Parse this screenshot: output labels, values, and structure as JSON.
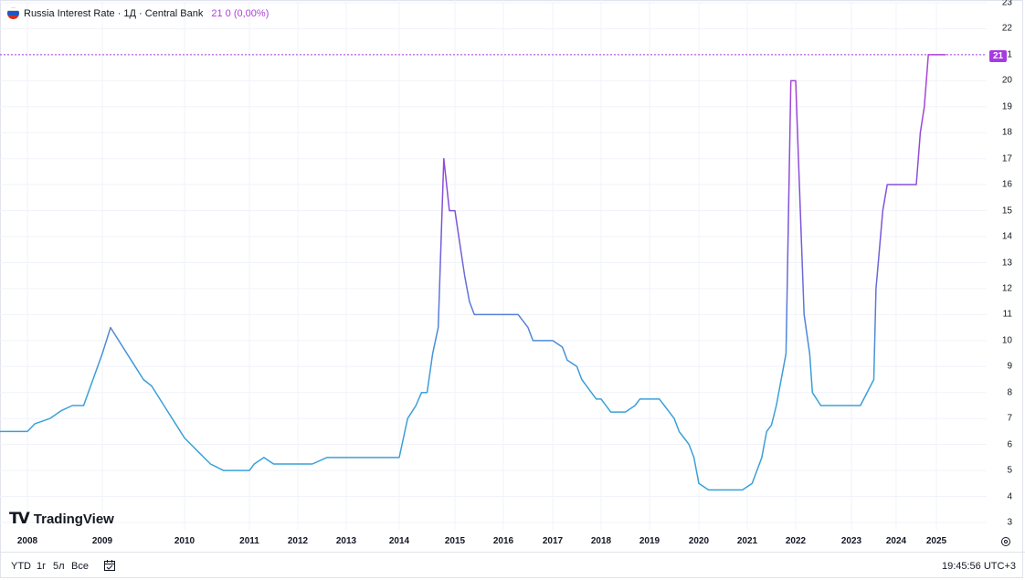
{
  "legend": {
    "title": "Russia Interest Rate · 1Д · Central Bank",
    "value": "21 0 (0,00%)"
  },
  "price_label": "21",
  "logo": {
    "mark": "TV",
    "text": "TradingView"
  },
  "bottom_bar": {
    "ranges": [
      "YTD",
      "1г",
      "5л",
      "Все"
    ],
    "clock": "19:45:56 UTC+3"
  },
  "colors": {
    "line_blue": "#3aa0d8",
    "line_purple": "#b03fd9",
    "grid": "#f0f3fa",
    "price_line": "#a53ce0"
  },
  "chart_data": {
    "type": "line",
    "title": "Russia Interest Rate",
    "ylim": [
      3,
      23
    ],
    "y_ticks": [
      3,
      4,
      5,
      6,
      7,
      8,
      9,
      10,
      11,
      12,
      13,
      14,
      15,
      16,
      17,
      18,
      19,
      20,
      21,
      22,
      23
    ],
    "x_ticks": [
      "2008",
      "2009",
      "2010",
      "2011",
      "2012",
      "2013",
      "2014",
      "2015",
      "2016",
      "2017",
      "2018",
      "2019",
      "2020",
      "2021",
      "2022",
      "2023",
      "2024",
      "2025"
    ],
    "series": [
      {
        "x": [
          2007.4,
          2008.0,
          2008.1,
          2008.3,
          2008.45,
          2008.6,
          2008.75,
          2009.0,
          2009.1,
          2009.2,
          2009.3,
          2009.4,
          2009.5,
          2009.6,
          2009.7,
          2009.8,
          2009.9,
          2010.0,
          2010.1,
          2010.2,
          2010.3,
          2010.4,
          2010.6,
          2010.9,
          2011.0,
          2011.1,
          2011.3,
          2011.5,
          2011.7,
          2011.9,
          2012.0,
          2012.3,
          2012.6,
          2012.8,
          2013.0,
          2013.5,
          2014.0,
          2014.15,
          2014.3,
          2014.4,
          2014.5,
          2014.6,
          2014.7,
          2014.8,
          2014.9,
          2014.97,
          2015.0,
          2015.08,
          2015.2,
          2015.3,
          2015.4,
          2015.45,
          2015.5,
          2016.0,
          2016.3,
          2016.5,
          2016.6,
          2017.0,
          2017.2,
          2017.3,
          2017.5,
          2017.6,
          2017.7,
          2017.8,
          2017.9,
          2018.0,
          2018.2,
          2018.5,
          2018.7,
          2018.8,
          2018.95,
          2019.2,
          2019.3,
          2019.4,
          2019.5,
          2019.6,
          2019.7,
          2019.8,
          2019.9,
          2020.0,
          2020.2,
          2020.3,
          2020.45,
          2020.55,
          2020.9,
          2021.1,
          2021.2,
          2021.3,
          2021.4,
          2021.5,
          2021.6,
          2021.7,
          2021.8,
          2021.9,
          2022.0,
          2022.05,
          2022.1,
          2022.15,
          2022.25,
          2022.3,
          2022.45,
          2022.6,
          2022.7,
          2022.8,
          2023.0,
          2023.2,
          2023.5,
          2023.55,
          2023.6,
          2023.7,
          2023.8,
          2023.9,
          2024.0,
          2024.5,
          2024.6,
          2024.7,
          2024.8,
          2025.0,
          2025.2
        ],
        "y": [
          6.5,
          6.5,
          6.8,
          7.0,
          7.3,
          7.5,
          7.5,
          9.5,
          10.5,
          10.0,
          9.5,
          9.0,
          8.5,
          8.25,
          7.75,
          7.25,
          6.75,
          6.25,
          6.0,
          5.75,
          5.5,
          5.25,
          5.0,
          5.0,
          5.0,
          5.25,
          5.5,
          5.25,
          5.25,
          5.25,
          5.25,
          5.25,
          5.5,
          5.5,
          5.5,
          5.5,
          5.5,
          7.0,
          7.5,
          8.0,
          8.0,
          9.5,
          10.5,
          17.0,
          15.0,
          15.0,
          15.0,
          14.0,
          12.5,
          11.5,
          11.0,
          11.0,
          11.0,
          11.0,
          11.0,
          10.5,
          10.0,
          10.0,
          9.75,
          9.25,
          9.0,
          8.5,
          8.25,
          8.0,
          7.75,
          7.75,
          7.25,
          7.25,
          7.5,
          7.75,
          7.75,
          7.75,
          7.5,
          7.25,
          7.0,
          6.5,
          6.25,
          6.0,
          5.5,
          4.5,
          4.25,
          4.25,
          4.25,
          4.25,
          4.25,
          4.5,
          5.0,
          5.5,
          6.5,
          6.75,
          7.5,
          8.5,
          9.5,
          20.0,
          20.0,
          17.0,
          14.0,
          11.0,
          9.5,
          8.0,
          7.5,
          7.5,
          7.5,
          7.5,
          7.5,
          7.5,
          8.5,
          12.0,
          13.0,
          15.0,
          16.0,
          16.0,
          16.0,
          16.0,
          18.0,
          19.0,
          21.0,
          21.0,
          21.0
        ]
      }
    ]
  }
}
